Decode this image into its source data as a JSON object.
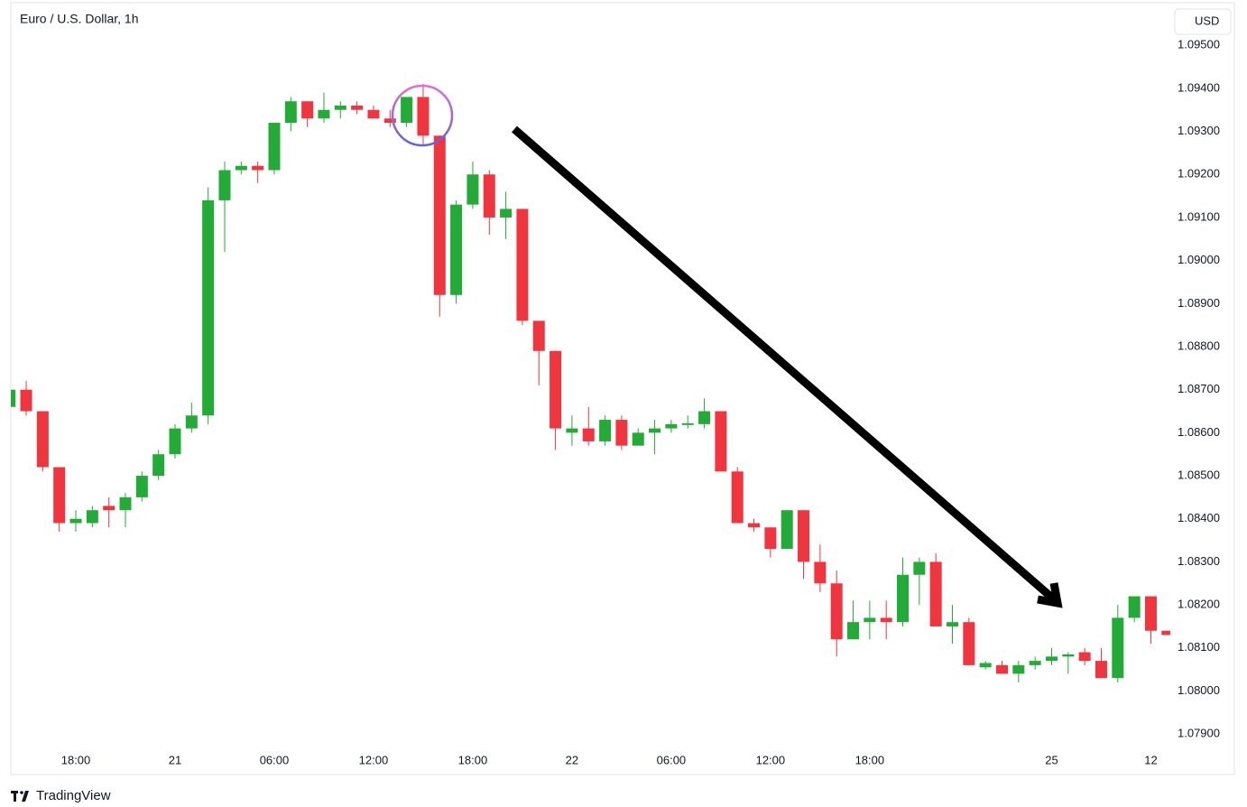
{
  "chart_data": {
    "type": "candlestick",
    "title": "Euro / U.S. Dollar, 1h",
    "categories": [
      null,
      null,
      null,
      null,
      "18:00",
      null,
      null,
      null,
      null,
      null,
      "21",
      null,
      null,
      null,
      null,
      null,
      "06:00",
      null,
      null,
      null,
      null,
      null,
      "12:00",
      null,
      null,
      null,
      null,
      null,
      "18:00",
      null,
      null,
      null,
      null,
      null,
      "22",
      null,
      null,
      null,
      null,
      null,
      "06:00",
      null,
      null,
      null,
      null,
      null,
      "12:00",
      null,
      null,
      null,
      null,
      null,
      "18:00",
      null,
      null,
      null,
      null,
      null,
      null,
      null,
      null,
      null,
      null,
      "25",
      null,
      null,
      null,
      null,
      null,
      "12",
      null
    ],
    "open": [
      1.0866,
      1.087,
      1.0865,
      1.0852,
      1.0839,
      1.0839,
      1.0843,
      1.0842,
      1.0845,
      1.085,
      1.0855,
      1.0861,
      1.0864,
      1.0914,
      1.0921,
      1.0922,
      1.0921,
      1.0932,
      1.0937,
      1.0933,
      1.0935,
      1.0936,
      1.0935,
      1.0933,
      1.0932,
      1.0938,
      1.0929,
      1.0892,
      1.0913,
      1.092,
      1.091,
      1.0912,
      1.0886,
      1.0879,
      1.086,
      1.0861,
      1.0858,
      1.0863,
      1.0857,
      1.086,
      1.0861,
      1.08618,
      1.0862,
      1.0865,
      1.0851,
      1.0839,
      1.0838,
      1.0833,
      1.0842,
      1.083,
      1.0825,
      1.0812,
      1.0816,
      1.0817,
      1.0816,
      1.0827,
      1.083,
      1.0815,
      1.0816,
      1.08055,
      1.0806,
      1.0804,
      1.0806,
      1.0807,
      1.0808,
      1.0809,
      1.0807,
      1.0803,
      1.0817,
      1.0822,
      1.0814
    ],
    "high": [
      1.0871,
      1.0872,
      1.0865,
      1.0852,
      1.0842,
      1.0843,
      1.0845,
      1.0846,
      1.0851,
      1.0856,
      1.0862,
      1.0867,
      1.0917,
      1.0923,
      1.0923,
      1.0923,
      1.0932,
      1.0938,
      1.0937,
      1.0939,
      1.0937,
      1.0937,
      1.0936,
      1.0935,
      1.0938,
      1.0941,
      1.0929,
      1.0914,
      1.0923,
      1.0921,
      1.0916,
      1.0912,
      1.0886,
      1.0879,
      1.0864,
      1.0866,
      1.0864,
      1.0864,
      1.0861,
      1.0863,
      1.0863,
      1.0864,
      1.0868,
      1.0865,
      1.0852,
      1.084,
      1.0838,
      1.0842,
      1.0842,
      1.0834,
      1.0828,
      1.0821,
      1.0821,
      1.0821,
      1.0831,
      1.0831,
      1.0832,
      1.082,
      1.0817,
      1.0807,
      1.0807,
      1.0807,
      1.0808,
      1.081,
      1.0809,
      1.081,
      1.081,
      1.082,
      1.0822,
      1.0822,
      1.0814
    ],
    "low": [
      1.0865,
      1.0864,
      1.0851,
      1.0837,
      1.0837,
      1.0838,
      1.0838,
      1.0838,
      1.0844,
      1.0849,
      1.0854,
      1.086,
      1.0862,
      1.0902,
      1.092,
      1.0918,
      1.092,
      1.093,
      1.0931,
      1.0932,
      1.0933,
      1.0934,
      1.0933,
      1.0931,
      1.0931,
      1.0927,
      1.0887,
      1.089,
      1.0912,
      1.0906,
      1.0905,
      1.0885,
      1.0871,
      1.0856,
      1.0857,
      1.0857,
      1.0857,
      1.0856,
      1.0857,
      1.0855,
      1.086,
      1.0861,
      1.0861,
      1.0851,
      1.0839,
      1.0837,
      1.0831,
      1.0833,
      1.0826,
      1.0823,
      1.0808,
      1.0812,
      1.0812,
      1.0812,
      1.0815,
      1.082,
      1.0815,
      1.0811,
      1.0806,
      1.0805,
      1.0804,
      1.0802,
      1.0805,
      1.0806,
      1.0804,
      1.0806,
      1.0803,
      1.0802,
      1.0816,
      1.0811,
      1.0813
    ],
    "close": [
      1.087,
      1.0865,
      1.0852,
      1.0839,
      1.084,
      1.0842,
      1.0842,
      1.0845,
      1.085,
      1.0855,
      1.0861,
      1.0864,
      1.0914,
      1.0921,
      1.0922,
      1.0921,
      1.0932,
      1.0937,
      1.0933,
      1.0935,
      1.0936,
      1.0935,
      1.0933,
      1.0932,
      1.0938,
      1.0929,
      1.0892,
      1.0913,
      1.092,
      1.091,
      1.0912,
      1.0886,
      1.0879,
      1.0861,
      1.0861,
      1.0858,
      1.0863,
      1.0857,
      1.086,
      1.0861,
      1.0862,
      1.08622,
      1.0865,
      1.0851,
      1.0839,
      1.0838,
      1.0833,
      1.0842,
      1.083,
      1.0825,
      1.0812,
      1.0816,
      1.0817,
      1.0816,
      1.0827,
      1.083,
      1.0815,
      1.0816,
      1.0806,
      1.08065,
      1.0804,
      1.0806,
      1.0807,
      1.0808,
      1.08085,
      1.0807,
      1.0803,
      1.0817,
      1.0822,
      1.0814,
      1.0813
    ],
    "up_color": "#22ab36",
    "down_color": "#f0353f",
    "ylim": [
      1.07806,
      1.09599
    ],
    "yticks": [
      {
        "value": 1.079,
        "label": "1.07900"
      },
      {
        "value": 1.08,
        "label": "1.08000"
      },
      {
        "value": 1.081,
        "label": "1.08100"
      },
      {
        "value": 1.082,
        "label": "1.08200"
      },
      {
        "value": 1.083,
        "label": "1.08300"
      },
      {
        "value": 1.084,
        "label": "1.08400"
      },
      {
        "value": 1.085,
        "label": "1.08500"
      },
      {
        "value": 1.086,
        "label": "1.08600"
      },
      {
        "value": 1.087,
        "label": "1.08700"
      },
      {
        "value": 1.088,
        "label": "1.08800"
      },
      {
        "value": 1.089,
        "label": "1.08900"
      },
      {
        "value": 1.09,
        "label": "1.09000"
      },
      {
        "value": 1.091,
        "label": "1.09100"
      },
      {
        "value": 1.092,
        "label": "1.09200"
      },
      {
        "value": 1.093,
        "label": "1.09300"
      },
      {
        "value": 1.094,
        "label": "1.09400"
      },
      {
        "value": 1.095,
        "label": "1.09500"
      }
    ],
    "grid": false
  },
  "currency_button": "USD",
  "brand": "TradingView"
}
